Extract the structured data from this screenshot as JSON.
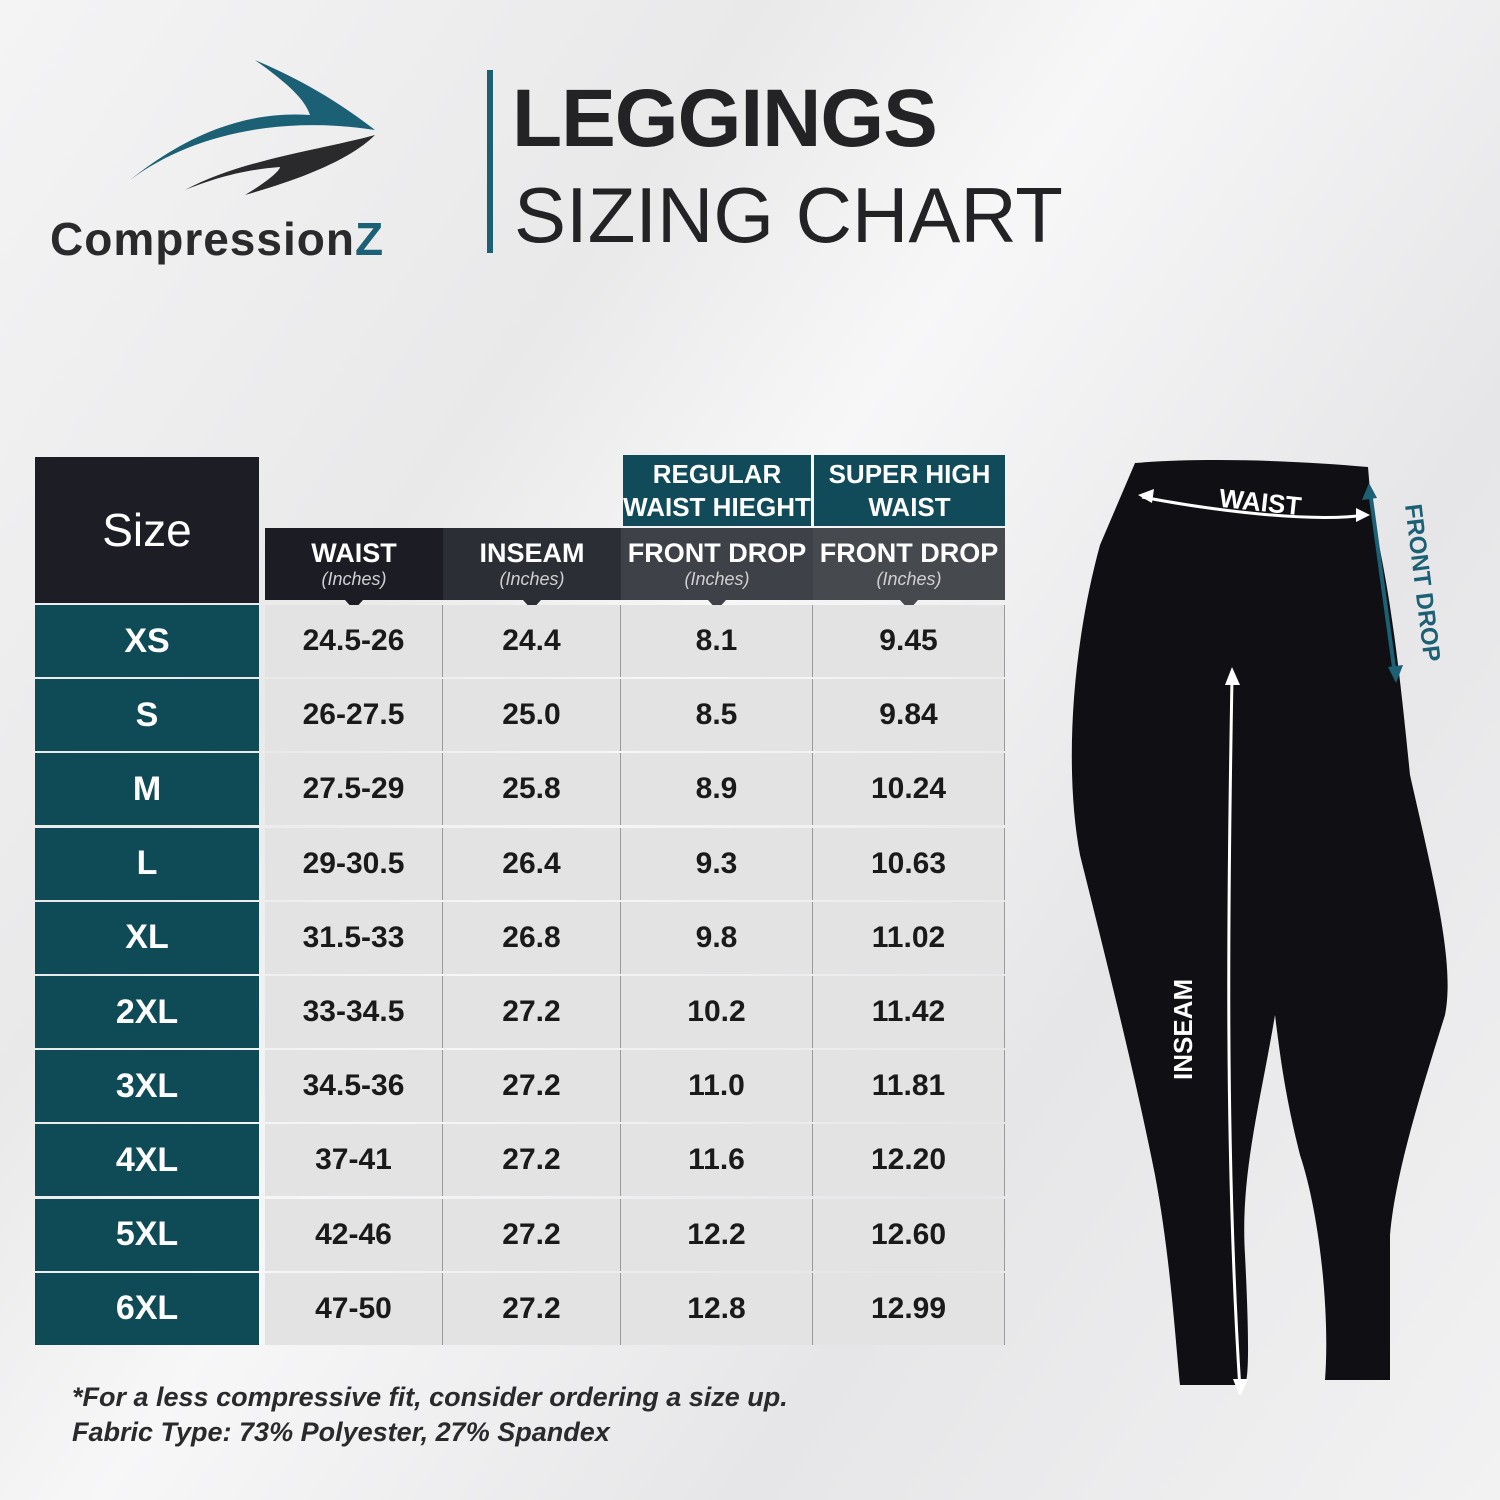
{
  "brand": {
    "name_main": "Compression",
    "name_accent": "Z",
    "colors": {
      "teal": "#1b6074",
      "dark": "#2a2a2c"
    }
  },
  "title": {
    "line1": "LEGGINGS",
    "line2": "SIZING CHART"
  },
  "table": {
    "size_header": "Size",
    "group_headers": [
      {
        "label1": "REGULAR",
        "label2": "WAIST HIEGHT"
      },
      {
        "label1": "SUPER HIGH",
        "label2": "WAIST"
      }
    ],
    "columns": [
      {
        "label": "WAIST",
        "unit": "(Inches)"
      },
      {
        "label": "INSEAM",
        "unit": "(Inches)"
      },
      {
        "label": "FRONT DROP",
        "unit": "(Inches)"
      },
      {
        "label": "FRONT DROP",
        "unit": "(Inches)"
      }
    ],
    "rows": [
      {
        "size": "XS",
        "values": [
          "24.5-26",
          "24.4",
          "8.1",
          "9.45"
        ]
      },
      {
        "size": "S",
        "values": [
          "26-27.5",
          "25.0",
          "8.5",
          "9.84"
        ]
      },
      {
        "size": "M",
        "values": [
          "27.5-29",
          "25.8",
          "8.9",
          "10.24"
        ]
      },
      {
        "size": "L",
        "values": [
          "29-30.5",
          "26.4",
          "9.3",
          "10.63"
        ]
      },
      {
        "size": "XL",
        "values": [
          "31.5-33",
          "26.8",
          "9.8",
          "11.02"
        ]
      },
      {
        "size": "2XL",
        "values": [
          "33-34.5",
          "27.2",
          "10.2",
          "11.42"
        ]
      },
      {
        "size": "3XL",
        "values": [
          "34.5-36",
          "27.2",
          "11.0",
          "11.81"
        ]
      },
      {
        "size": "4XL",
        "values": [
          "37-41",
          "27.2",
          "11.6",
          "12.20"
        ]
      },
      {
        "size": "5XL",
        "values": [
          "42-46",
          "27.2",
          "12.2",
          "12.60"
        ]
      },
      {
        "size": "6XL",
        "values": [
          "47-50",
          "27.2",
          "12.8",
          "12.99"
        ]
      }
    ]
  },
  "diagram": {
    "waist_label": "WAIST",
    "front_drop_label": "FRONT DROP",
    "inseam_label": "INSEAM"
  },
  "notes": {
    "line1": "*For a less compressive fit, consider ordering a size up.",
    "line2": "Fabric Type: 73% Polyester, 27% Spandex"
  }
}
